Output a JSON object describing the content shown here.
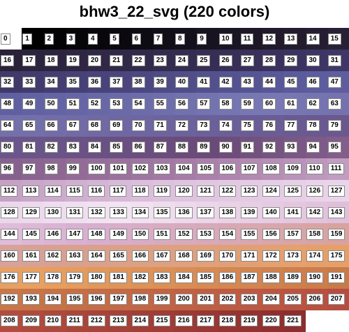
{
  "title": "bhw3_22_svg (220 colors)",
  "grid": {
    "columns": 16,
    "rows": 14,
    "total_cells": 222
  },
  "palette": {
    "stops": [
      "#000000",
      "#2a2238",
      "#3d3564",
      "#5a5a9c",
      "#7878b4",
      "#6a5e98",
      "#6a4a78",
      "#a67aa6",
      "#dcc0dc",
      "#f2e4f2",
      "#d8aed0",
      "#d8a090",
      "#e8a060",
      "#c87848",
      "#b85040",
      "#8c2e2e"
    ]
  }
}
